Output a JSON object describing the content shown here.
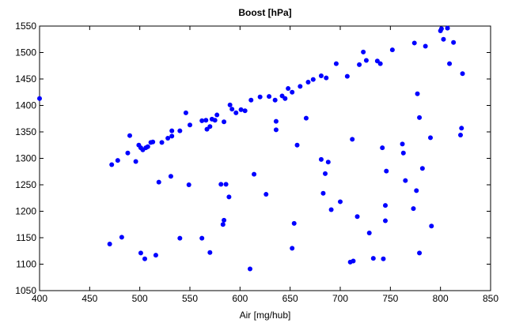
{
  "chart_data": {
    "type": "scatter",
    "title": "Boost [hPa]",
    "xlabel": "Air [mg/hub]",
    "ylabel": "",
    "xlim": [
      400,
      850
    ],
    "ylim": [
      1050,
      1550
    ],
    "xticks": [
      400,
      450,
      500,
      550,
      600,
      650,
      700,
      750,
      800,
      850
    ],
    "yticks": [
      1050,
      1100,
      1150,
      1200,
      1250,
      1300,
      1350,
      1400,
      1450,
      1500,
      1550
    ],
    "grid": false,
    "marker_color": "#0000ff",
    "points": [
      [
        400,
        1413
      ],
      [
        472,
        1288
      ],
      [
        478,
        1296
      ],
      [
        488,
        1310
      ],
      [
        490,
        1343
      ],
      [
        496,
        1294
      ],
      [
        499,
        1325
      ],
      [
        501,
        1320
      ],
      [
        503,
        1316
      ],
      [
        506,
        1320
      ],
      [
        508,
        1322
      ],
      [
        511,
        1330
      ],
      [
        513,
        1331
      ],
      [
        522,
        1330
      ],
      [
        528,
        1338
      ],
      [
        532,
        1342
      ],
      [
        532,
        1352
      ],
      [
        540,
        1352
      ],
      [
        546,
        1386
      ],
      [
        550,
        1363
      ],
      [
        562,
        1371
      ],
      [
        566,
        1372
      ],
      [
        567,
        1355
      ],
      [
        570,
        1360
      ],
      [
        572,
        1374
      ],
      [
        575,
        1372
      ],
      [
        577,
        1382
      ],
      [
        584,
        1369
      ],
      [
        590,
        1401
      ],
      [
        592,
        1393
      ],
      [
        596,
        1386
      ],
      [
        601,
        1392
      ],
      [
        605,
        1390
      ],
      [
        611,
        1410
      ],
      [
        620,
        1416
      ],
      [
        629,
        1417
      ],
      [
        635,
        1410
      ],
      [
        642,
        1418
      ],
      [
        645,
        1413
      ],
      [
        648,
        1432
      ],
      [
        652,
        1425
      ],
      [
        660,
        1436
      ],
      [
        668,
        1444
      ],
      [
        673,
        1449
      ],
      [
        681,
        1456
      ],
      [
        686,
        1452
      ],
      [
        696,
        1479
      ],
      [
        707,
        1455
      ],
      [
        719,
        1477
      ],
      [
        723,
        1501
      ],
      [
        726,
        1485
      ],
      [
        737,
        1484
      ],
      [
        740,
        1479
      ],
      [
        752,
        1505
      ],
      [
        774,
        1518
      ],
      [
        785,
        1512
      ],
      [
        800,
        1541
      ],
      [
        801,
        1545
      ],
      [
        803,
        1525
      ],
      [
        807,
        1546
      ],
      [
        809,
        1479
      ],
      [
        813,
        1519
      ],
      [
        821,
        1357
      ],
      [
        820,
        1344
      ],
      [
        822,
        1460
      ],
      [
        636,
        1370
      ],
      [
        636,
        1354
      ],
      [
        657,
        1325
      ],
      [
        666,
        1376
      ],
      [
        681,
        1298
      ],
      [
        683,
        1234
      ],
      [
        685,
        1271
      ],
      [
        688,
        1293
      ],
      [
        691,
        1203
      ],
      [
        700,
        1218
      ],
      [
        712,
        1336
      ],
      [
        717,
        1190
      ],
      [
        729,
        1159
      ],
      [
        742,
        1320
      ],
      [
        745,
        1211
      ],
      [
        745,
        1182
      ],
      [
        746,
        1276
      ],
      [
        762,
        1327
      ],
      [
        763,
        1310
      ],
      [
        765,
        1258
      ],
      [
        773,
        1205
      ],
      [
        776,
        1239
      ],
      [
        777,
        1422
      ],
      [
        779,
        1377
      ],
      [
        779,
        1121
      ],
      [
        782,
        1281
      ],
      [
        790,
        1339
      ],
      [
        791,
        1172
      ],
      [
        470,
        1138
      ],
      [
        482,
        1151
      ],
      [
        501,
        1121
      ],
      [
        505,
        1110
      ],
      [
        516,
        1117
      ],
      [
        519,
        1255
      ],
      [
        531,
        1266
      ],
      [
        540,
        1149
      ],
      [
        549,
        1250
      ],
      [
        562,
        1149
      ],
      [
        570,
        1122
      ],
      [
        581,
        1251
      ],
      [
        583,
        1175
      ],
      [
        584,
        1183
      ],
      [
        586,
        1251
      ],
      [
        589,
        1227
      ],
      [
        610,
        1091
      ],
      [
        614,
        1270
      ],
      [
        626,
        1232
      ],
      [
        652,
        1130
      ],
      [
        654,
        1177
      ],
      [
        710,
        1104
      ],
      [
        713,
        1106
      ],
      [
        733,
        1111
      ],
      [
        743,
        1110
      ]
    ]
  }
}
